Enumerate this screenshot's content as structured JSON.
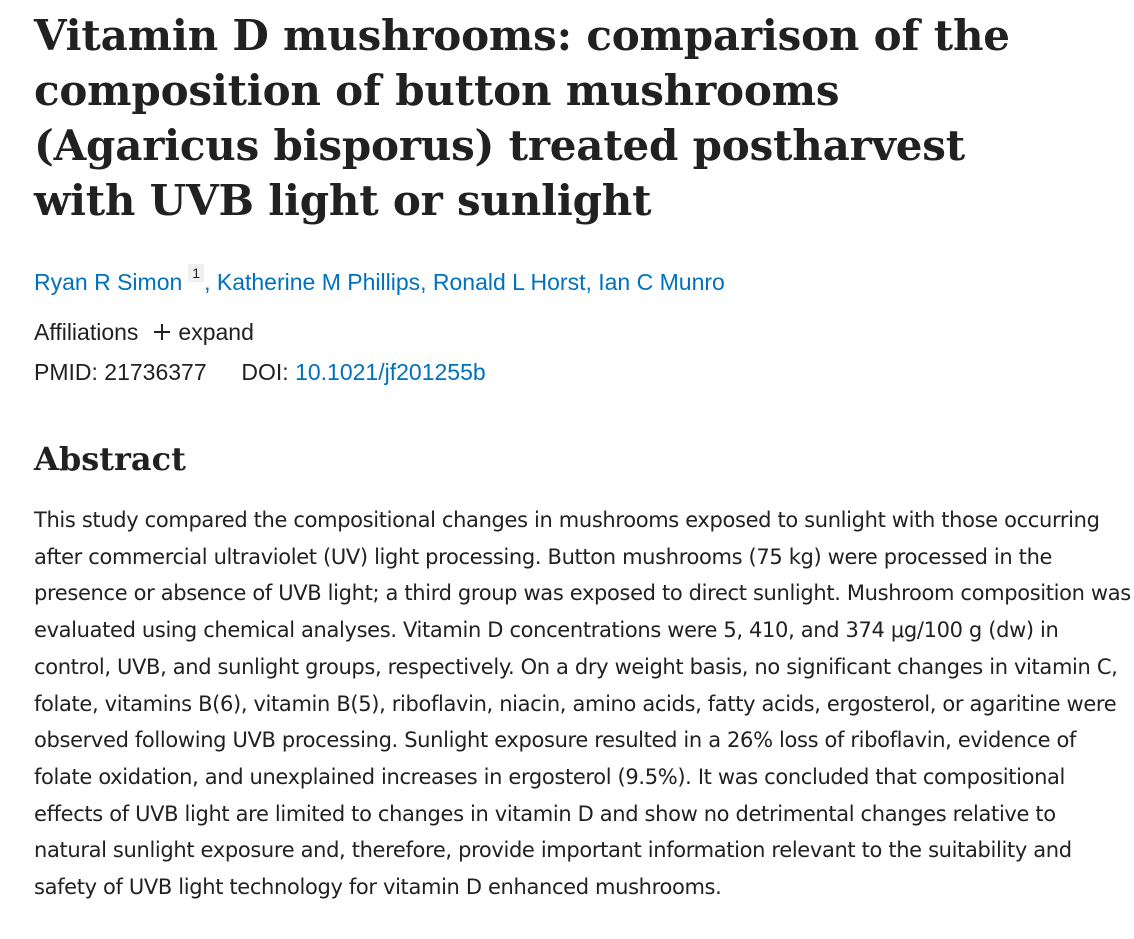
{
  "article": {
    "title": "Vitamin D mushrooms: comparison of the composition of button mushrooms (Agaricus bisporus) treated postharvest with UVB light or sunlight",
    "authors": [
      {
        "name": "Ryan R Simon",
        "affiliation_ref": "1"
      },
      {
        "name": "Katherine M Phillips"
      },
      {
        "name": "Ronald L Horst"
      },
      {
        "name": "Ian C Munro"
      }
    ],
    "affiliations": {
      "label": "Affiliations",
      "toggle_label": "expand",
      "toggle_icon": "plus-icon"
    },
    "identifiers": {
      "pmid_label": "PMID:",
      "pmid": "21736377",
      "doi_label": "DOI:",
      "doi": "10.1021/jf201255b"
    },
    "abstract": {
      "heading": "Abstract",
      "text": "This study compared the compositional changes in mushrooms exposed to sunlight with those occurring after commercial ultraviolet (UV) light processing. Button mushrooms (75 kg) were processed in the presence or absence of UVB light; a third group was exposed to direct sunlight. Mushroom composition was evaluated using chemical analyses. Vitamin D concentrations were 5, 410, and 374 μg/100 g (dw) in control, UVB, and sunlight groups, respectively. On a dry weight basis, no significant changes in vitamin C, folate, vitamins B(6), vitamin B(5), riboflavin, niacin, amino acids, fatty acids, ergosterol, or agaritine were observed following UVB processing. Sunlight exposure resulted in a 26% loss of riboflavin, evidence of folate oxidation, and unexplained increases in ergosterol (9.5%). It was concluded that compositional effects of UVB light are limited to changes in vitamin D and show no detrimental changes relative to natural sunlight exposure and, therefore, provide important information relevant to the suitability and safety of UVB light technology for vitamin D enhanced mushrooms."
    }
  },
  "colors": {
    "link": "#0071bc",
    "text": "#212121",
    "background": "#ffffff"
  }
}
